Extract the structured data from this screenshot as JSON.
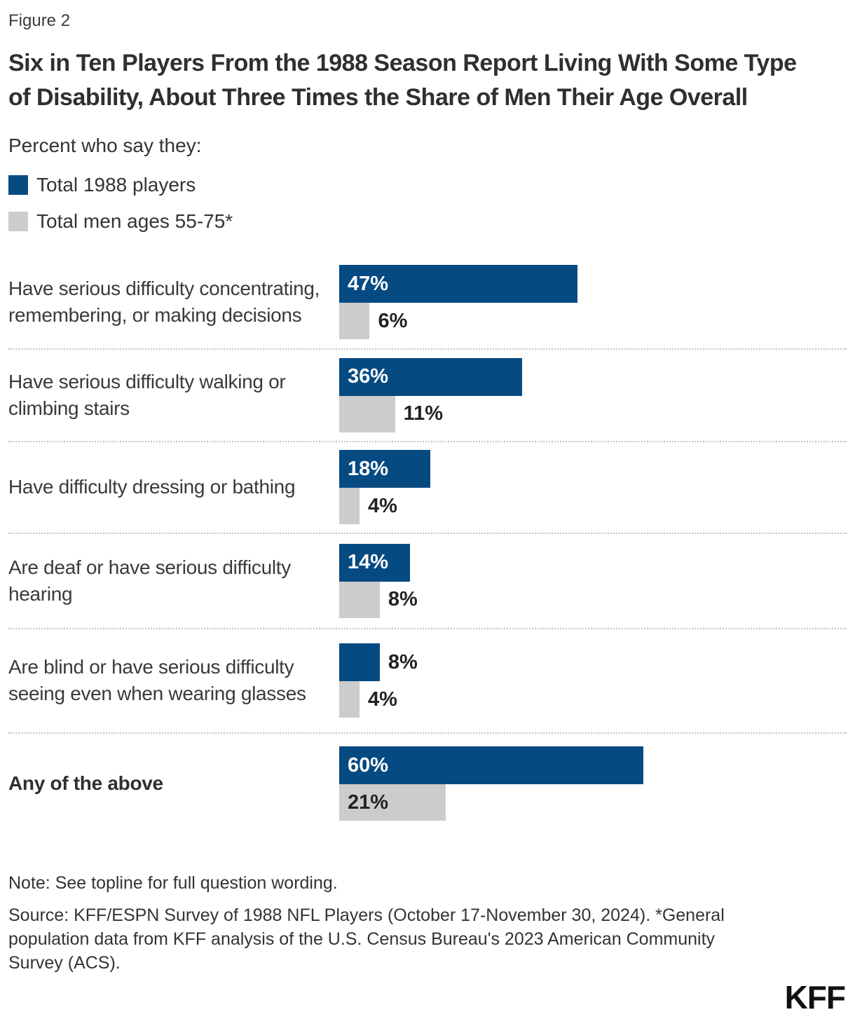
{
  "figure_label": "Figure 2",
  "title": "Six in Ten Players From the 1988 Season Report Living With Some Type of Disability, About Three Times the Share of Men Their Age Overall",
  "subtitle": "Percent who say they:",
  "colors": {
    "players_bar": "#064a82",
    "men_bar": "#cccccc",
    "value_label_on_blue": "#ffffff",
    "value_label_dark": "#232323"
  },
  "legend": [
    {
      "label": "Total 1988 players",
      "series": "players"
    },
    {
      "label": "Total men ages 55-75*",
      "series": "men"
    }
  ],
  "chart_data": {
    "type": "bar",
    "orientation": "horizontal",
    "title": "Percent who say they:",
    "xlim": [
      0,
      100
    ],
    "value_suffix": "%",
    "grid": false,
    "legend_position": "top-left",
    "categories": [
      "Have serious difficulty concentrating, remembering, or making decisions",
      "Have serious difficulty walking or climbing stairs",
      "Have difficulty dressing or bathing",
      "Are deaf or have serious difficulty hearing",
      "Are blind or have serious difficulty seeing even when wearing glasses",
      "Any of the above"
    ],
    "series": [
      {
        "name": "Total 1988 players",
        "values": [
          47,
          36,
          18,
          14,
          8,
          60
        ]
      },
      {
        "name": "Total men ages 55-75*",
        "values": [
          6,
          11,
          4,
          8,
          4,
          21
        ]
      }
    ],
    "emphasized_category": "Any of the above"
  },
  "note": "Note: See topline for full question wording.",
  "source": "Source: KFF/ESPN Survey of 1988 NFL Players (October 17-November 30, 2024). *General population data from KFF analysis of the U.S. Census Bureau's 2023 American Community Survey (ACS).",
  "logo_text": "KFF"
}
